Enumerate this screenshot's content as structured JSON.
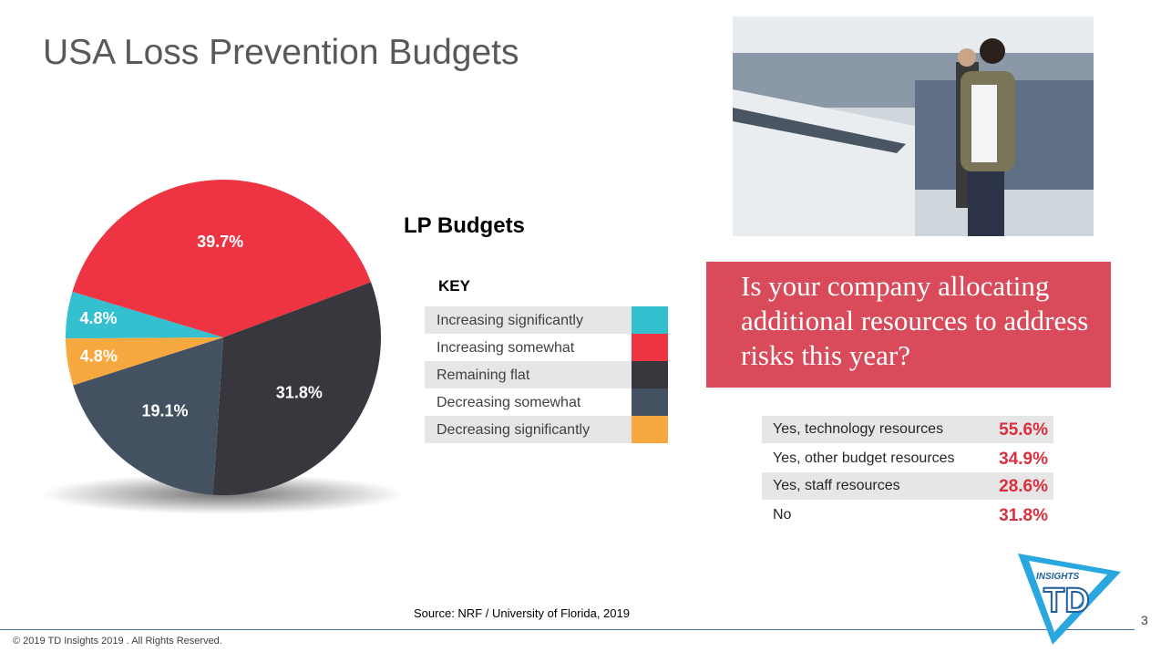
{
  "header": {
    "title": "USA Loss Prevention Budgets"
  },
  "chart_data": {
    "type": "pie",
    "title": "LP Budgets",
    "legend_title": "KEY",
    "categories": [
      "Increasing significantly",
      "Increasing somewhat",
      "Remaining flat",
      "Decreasing somewhat",
      "Decreasing significantly"
    ],
    "values": [
      4.8,
      39.7,
      31.8,
      19.1,
      4.8
    ],
    "value_labels": [
      "4.8%",
      "39.7%",
      "31.8%",
      "19.1%",
      "4.8%"
    ],
    "colors": [
      "#35c0d0",
      "#ee3342",
      "#38373d",
      "#445160",
      "#f7a940"
    ]
  },
  "question": "Is your company allocating additional resources to address risks this year?",
  "table": {
    "rows": [
      [
        "Yes, technology resources",
        "55.6%"
      ],
      [
        "Yes, other budget resources",
        "34.9%"
      ],
      [
        "Yes, staff resources",
        "28.6%"
      ],
      [
        "No",
        "31.8%"
      ]
    ]
  },
  "source": "Source: NRF / University of Florida, 2019",
  "footer": "© 2019 TD Insights 2019 . All Rights Reserved.",
  "page_number": "3",
  "logo": {
    "small": "INSIGHTS",
    "big": "TD"
  }
}
